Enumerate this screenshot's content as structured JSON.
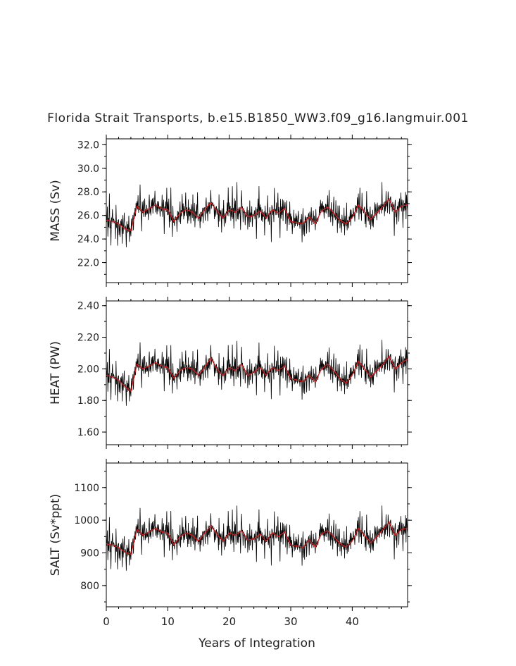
{
  "figure": {
    "title": "Florida Strait Transports, b.e15.B1850_WW3.f09_g16.langmuir.001"
  },
  "chart_data": [
    {
      "type": "line",
      "title": "",
      "xlabel": "",
      "ylabel": "MASS (Sv)",
      "xlim": [
        0,
        49
      ],
      "ylim": [
        20.3,
        32.5
      ],
      "yticks": [
        22.0,
        24.0,
        26.0,
        28.0,
        30.0,
        32.0
      ],
      "ytick_labels": [
        "22.0",
        "24.0",
        "26.0",
        "28.0",
        "30.0",
        "32.0"
      ],
      "series": [
        {
          "color": "#000000",
          "style": "monthly",
          "anomalies": [
            0.6,
            -0.4,
            1.8,
            -1.2,
            0.3,
            -0.9,
            2.3,
            -0.6,
            0.4,
            -1.8,
            1.1,
            -0.2,
            0.9,
            -1.4,
            0.5,
            2.2,
            -0.7,
            0.1,
            -1.3,
            1.6,
            -0.5,
            0.8,
            -2.6,
            0.4,
            1.3,
            -0.9,
            0.2,
            -1.1,
            1.9,
            -0.3,
            0.7,
            -1.7,
            1.0,
            -0.6,
            0.3,
            1.5,
            -1.2,
            0.6,
            -0.1,
            -2.0,
            1.4,
            -0.8,
            0.5,
            -0.4,
            1.2,
            -1.5,
            0.8,
            0.0,
            -0.7,
            1.7,
            -1.0,
            0.3,
            0.9,
            -1.9,
            0.6,
            -0.3,
            1.1,
            -0.5,
            2.0,
            -0.8
          ]
        },
        {
          "color": "#e01818",
          "style": "annual-smooth",
          "x": [
            0,
            1,
            2,
            3,
            4,
            5,
            6,
            7,
            8,
            9,
            10,
            11,
            12,
            13,
            14,
            15,
            16,
            17,
            18,
            19,
            20,
            21,
            22,
            23,
            24,
            25,
            26,
            27,
            28,
            29,
            30,
            31,
            32,
            33,
            34,
            35,
            36,
            37,
            38,
            39,
            40,
            41,
            42,
            43,
            44,
            45,
            46,
            47,
            48,
            49
          ],
          "y": [
            25.6,
            25.5,
            25.3,
            24.9,
            24.7,
            26.8,
            26.3,
            26.6,
            26.9,
            26.6,
            26.5,
            25.5,
            26.2,
            26.5,
            26.3,
            25.8,
            26.5,
            27.1,
            26.4,
            25.8,
            26.5,
            26.3,
            26.7,
            25.9,
            26.0,
            26.4,
            25.8,
            26.5,
            26.2,
            26.6,
            25.5,
            25.4,
            25.3,
            25.9,
            25.3,
            26.4,
            26.7,
            26.2,
            25.6,
            25.3,
            25.8,
            26.9,
            26.3,
            25.7,
            26.2,
            26.8,
            27.4,
            26.3,
            26.8,
            26.9
          ]
        }
      ]
    },
    {
      "type": "line",
      "title": "",
      "xlabel": "",
      "ylabel": "HEAT (PW)",
      "xlim": [
        0,
        49
      ],
      "ylim": [
        1.52,
        2.43
      ],
      "yticks": [
        1.6,
        1.8,
        2.0,
        2.2,
        2.4
      ],
      "ytick_labels": [
        "1.60",
        "1.80",
        "2.00",
        "2.20",
        "2.40"
      ],
      "series": [
        {
          "color": "#000000",
          "style": "monthly",
          "anomalies": [
            0.05,
            -0.03,
            0.13,
            -0.09,
            0.02,
            -0.07,
            0.17,
            -0.04,
            0.03,
            -0.13,
            0.08,
            -0.02,
            0.07,
            -0.1,
            0.04,
            0.16,
            -0.05,
            0.01,
            -0.1,
            0.12,
            -0.04,
            0.06,
            -0.19,
            0.03,
            0.1,
            -0.07,
            0.02,
            -0.08,
            0.14,
            -0.02,
            0.05,
            -0.13,
            0.07,
            -0.04,
            0.02,
            0.11,
            -0.09,
            0.04,
            -0.01,
            -0.15,
            0.1,
            -0.06,
            0.04,
            -0.03,
            0.09,
            -0.11,
            0.06,
            0.0,
            -0.05,
            0.13,
            -0.07,
            0.02,
            0.07,
            -0.14,
            0.05,
            -0.02,
            0.08,
            -0.04,
            0.15,
            -0.06
          ]
        },
        {
          "color": "#e01818",
          "style": "annual-smooth",
          "x": [
            0,
            1,
            2,
            3,
            4,
            5,
            6,
            7,
            8,
            9,
            10,
            11,
            12,
            13,
            14,
            15,
            16,
            17,
            18,
            19,
            20,
            21,
            22,
            23,
            24,
            25,
            26,
            27,
            28,
            29,
            30,
            31,
            32,
            33,
            34,
            35,
            36,
            37,
            38,
            39,
            40,
            41,
            42,
            43,
            44,
            45,
            46,
            47,
            48,
            49
          ],
          "y": [
            1.96,
            1.95,
            1.93,
            1.89,
            1.86,
            2.03,
            2.0,
            2.02,
            2.04,
            2.02,
            2.01,
            1.94,
            1.99,
            2.01,
            2.0,
            1.96,
            2.01,
            2.07,
            2.0,
            1.96,
            2.01,
            1.99,
            2.03,
            1.96,
            1.98,
            2.01,
            1.96,
            2.01,
            1.99,
            2.02,
            1.94,
            1.93,
            1.92,
            1.96,
            1.92,
            2.0,
            2.03,
            1.99,
            1.94,
            1.91,
            1.96,
            2.05,
            2.0,
            1.95,
            1.99,
            2.03,
            2.08,
            2.0,
            2.04,
            2.06
          ]
        }
      ]
    },
    {
      "type": "line",
      "title": "",
      "xlabel": "Years of Integration",
      "ylabel": "SALT (Sv*ppt)",
      "xlim": [
        0,
        49
      ],
      "ylim": [
        735,
        1175
      ],
      "xticks": [
        0,
        10,
        20,
        30,
        40
      ],
      "xtick_labels": [
        "0",
        "10",
        "20",
        "30",
        "40"
      ],
      "yticks": [
        800,
        900,
        1000,
        1100
      ],
      "ytick_labels": [
        "800",
        "900",
        "1000",
        "1100"
      ],
      "series": [
        {
          "color": "#000000",
          "style": "monthly",
          "anomalies": [
            22,
            -15,
            64,
            -43,
            11,
            -32,
            83,
            -22,
            14,
            -65,
            40,
            -7,
            32,
            -50,
            18,
            79,
            -25,
            4,
            -47,
            58,
            -18,
            29,
            -94,
            14,
            47,
            -32,
            7,
            -40,
            68,
            -11,
            25,
            -61,
            36,
            -22,
            11,
            54,
            -43,
            22,
            -4,
            -72,
            50,
            -29,
            18,
            -14,
            43,
            -54,
            29,
            0,
            -25,
            61,
            -36,
            11,
            32,
            -68,
            22,
            -11,
            40,
            -18,
            72,
            -29
          ]
        },
        {
          "color": "#e01818",
          "style": "annual-smooth",
          "x": [
            0,
            1,
            2,
            3,
            4,
            5,
            6,
            7,
            8,
            9,
            10,
            11,
            12,
            13,
            14,
            15,
            16,
            17,
            18,
            19,
            20,
            21,
            22,
            23,
            24,
            25,
            26,
            27,
            28,
            29,
            30,
            31,
            32,
            33,
            34,
            35,
            36,
            37,
            38,
            39,
            40,
            41,
            42,
            43,
            44,
            45,
            46,
            47,
            48,
            49
          ],
          "y": [
            928,
            924,
            917,
            903,
            896,
            972,
            954,
            965,
            976,
            965,
            961,
            925,
            950,
            961,
            954,
            936,
            961,
            983,
            958,
            936,
            961,
            954,
            968,
            940,
            943,
            958,
            936,
            961,
            950,
            965,
            925,
            921,
            918,
            940,
            918,
            958,
            968,
            950,
            929,
            918,
            936,
            976,
            954,
            932,
            950,
            972,
            994,
            954,
            972,
            976
          ]
        }
      ]
    }
  ]
}
